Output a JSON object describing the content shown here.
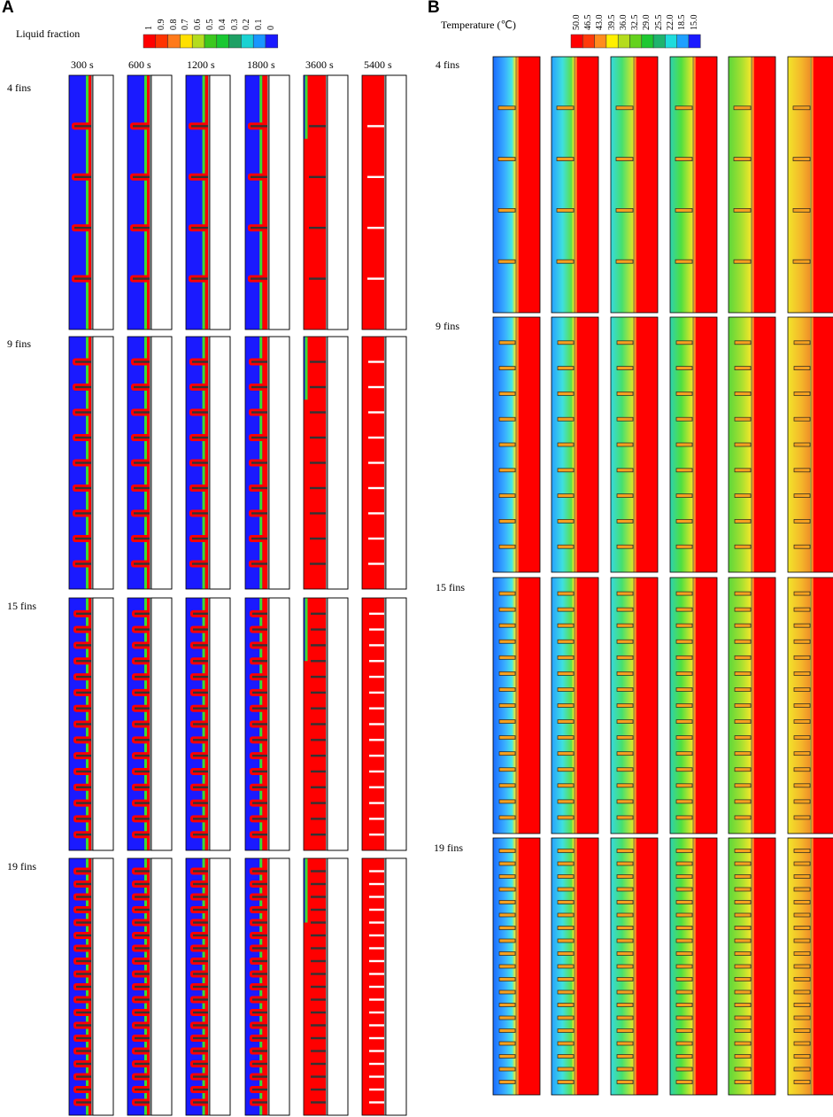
{
  "panels": {
    "a": {
      "letter": "A",
      "legend_title": "Liquid fraction",
      "legend_ticks": [
        "1",
        "0.9",
        "0.8",
        "0.7",
        "0.6",
        "0.5",
        "0.4",
        "0.3",
        "0.2",
        "0.1",
        "0"
      ],
      "legend_colors": [
        "#ff0000",
        "#ff3300",
        "#ff7a1a",
        "#ffe000",
        "#b4dc1e",
        "#3cc81e",
        "#19c832",
        "#1ea064",
        "#19d2d2",
        "#1996ff",
        "#1a1aff"
      ],
      "times": [
        "300 s",
        "600 s",
        "1200 s",
        "1800 s",
        "3600 s",
        "5400 s"
      ]
    },
    "b": {
      "letter": "B",
      "legend_title": "Temperature (℃)",
      "legend_ticks": [
        "50.0",
        "46.5",
        "43.0",
        "39.5",
        "36.0",
        "32.5",
        "29.0",
        "25.5",
        "22.0",
        "18.5",
        "15.0"
      ],
      "legend_colors": [
        "#ff0000",
        "#ff3a0a",
        "#ff8c1e",
        "#fff000",
        "#b4dc1e",
        "#64d21e",
        "#1ec832",
        "#1eb46e",
        "#1edcdc",
        "#1ea0ff",
        "#1a1aff"
      ]
    }
  },
  "rows": [
    {
      "label": "4 fins",
      "fins": 4
    },
    {
      "label": "9 fins",
      "fins": 9
    },
    {
      "label": "15 fins",
      "fins": 15
    },
    {
      "label": "19 fins",
      "fins": 19
    }
  ],
  "colors": {
    "liquid_red": "#ff0000",
    "solid_blue": "#1a1aff",
    "temp_cold": "#2a8cff",
    "temp_mid": "#3cdc32",
    "temp_warm": "#f0e62a",
    "temp_hot": "#ff4a1a"
  }
}
